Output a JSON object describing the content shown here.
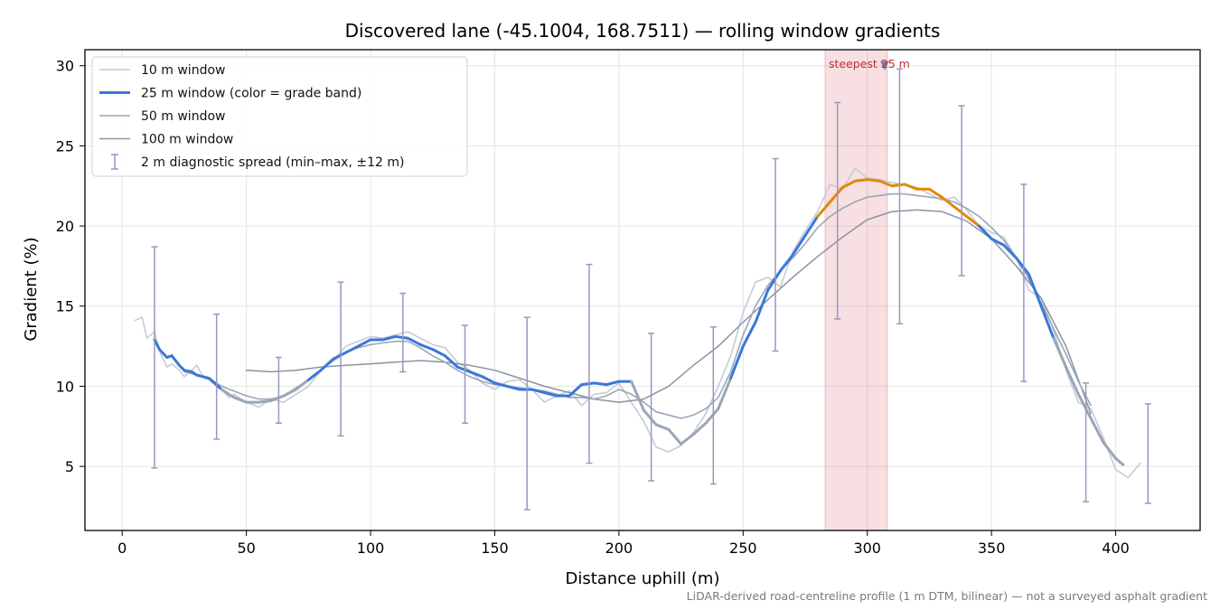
{
  "chart_data": {
    "type": "line",
    "title": "Discovered lane (-45.1004, 168.7511) — rolling window gradients",
    "xlabel": "Distance uphill (m)",
    "ylabel": "Gradient (%)",
    "xlim": [
      -15,
      434
    ],
    "ylim": [
      1,
      31
    ],
    "x_ticks": [
      "0",
      "50",
      "100",
      "150",
      "200",
      "250",
      "300",
      "350",
      "400"
    ],
    "y_ticks": [
      "5",
      "10",
      "15",
      "20",
      "25",
      "30"
    ],
    "grid": true,
    "legend_position": "top-left",
    "footnote": "LiDAR-derived road-centreline profile (1 m DTM, bilinear) — not a surveyed asphalt gradient",
    "series": [
      {
        "name": "10 m window",
        "color": "#c5cbd6",
        "x": [
          5,
          8,
          10,
          13,
          15,
          18,
          20,
          23,
          25,
          28,
          30,
          33,
          35,
          38,
          40,
          43,
          45,
          48,
          50,
          55,
          60,
          65,
          70,
          75,
          80,
          85,
          90,
          95,
          100,
          105,
          110,
          115,
          120,
          125,
          130,
          135,
          140,
          145,
          150,
          155,
          160,
          165,
          170,
          175,
          180,
          185,
          190,
          195,
          200,
          205,
          210,
          215,
          220,
          225,
          230,
          235,
          240,
          245,
          250,
          255,
          260,
          265,
          270,
          275,
          280,
          285,
          290,
          295,
          300,
          305,
          310,
          315,
          320,
          325,
          330,
          335,
          340,
          345,
          350,
          355,
          360,
          365,
          370,
          375,
          380,
          385,
          390,
          395,
          400,
          405,
          410
        ],
        "values": [
          14.1,
          14.3,
          13.0,
          13.4,
          12.2,
          11.2,
          11.4,
          11.0,
          10.6,
          11.0,
          11.3,
          10.5,
          10.4,
          10.0,
          9.8,
          9.3,
          9.5,
          9.2,
          9.0,
          8.7,
          9.2,
          9.0,
          9.5,
          10.0,
          11.0,
          11.6,
          12.5,
          12.8,
          13.1,
          13.0,
          13.2,
          13.4,
          13.0,
          12.6,
          12.4,
          11.5,
          11.0,
          10.2,
          9.8,
          10.3,
          10.4,
          9.8,
          9.0,
          9.4,
          9.7,
          8.8,
          9.5,
          9.6,
          10.2,
          9.0,
          7.8,
          6.2,
          5.9,
          6.3,
          7.1,
          8.3,
          10.0,
          11.9,
          14.6,
          16.5,
          16.8,
          16.2,
          18.4,
          19.7,
          20.9,
          22.6,
          22.3,
          23.6,
          23.0,
          22.9,
          22.7,
          22.6,
          22.4,
          22.0,
          21.6,
          21.8,
          21.0,
          20.0,
          19.6,
          19.3,
          18.0,
          16.0,
          15.5,
          13.5,
          11.0,
          9.0,
          8.6,
          6.8,
          4.8,
          4.3,
          5.2
        ]
      },
      {
        "name": "25 m window (color = grade band)",
        "color": "#3a78d8",
        "band_color": "#e08a0a",
        "band_threshold": 20,
        "x": [
          13,
          15,
          18,
          20,
          23,
          25,
          28,
          30,
          35,
          40,
          45,
          50,
          55,
          60,
          65,
          70,
          75,
          80,
          85,
          90,
          95,
          100,
          105,
          110,
          115,
          120,
          125,
          130,
          135,
          140,
          145,
          150,
          155,
          160,
          165,
          170,
          175,
          180,
          185,
          190,
          195,
          200,
          205,
          210,
          215,
          220,
          225,
          230,
          235,
          240,
          245,
          250,
          255,
          260,
          265,
          270,
          275,
          280,
          285,
          290,
          295,
          300,
          305,
          310,
          315,
          320,
          325,
          330,
          335,
          340,
          345,
          350,
          355,
          360,
          365,
          370,
          375,
          380,
          385,
          390,
          395,
          400,
          403
        ],
        "values": [
          12.9,
          12.3,
          11.8,
          11.9,
          11.3,
          11.0,
          10.9,
          10.7,
          10.5,
          9.8,
          9.3,
          9.0,
          9.0,
          9.1,
          9.4,
          9.8,
          10.4,
          11.0,
          11.7,
          12.1,
          12.5,
          12.9,
          12.9,
          13.1,
          13.0,
          12.6,
          12.3,
          11.9,
          11.2,
          10.9,
          10.6,
          10.2,
          10.0,
          9.8,
          9.8,
          9.6,
          9.4,
          9.4,
          10.1,
          10.2,
          10.1,
          10.3,
          10.3,
          8.5,
          7.6,
          7.3,
          6.4,
          7.0,
          7.7,
          8.6,
          10.5,
          12.5,
          14.0,
          16.0,
          17.2,
          18.2,
          19.4,
          20.6,
          21.5,
          22.4,
          22.8,
          22.9,
          22.8,
          22.5,
          22.6,
          22.3,
          22.3,
          21.8,
          21.2,
          20.6,
          20.0,
          19.2,
          18.8,
          18.0,
          17.0,
          15.0,
          13.0,
          11.2,
          9.5,
          8.0,
          6.5,
          5.5,
          5.1
        ]
      },
      {
        "name": "50 m window",
        "color": "#9aa6b8",
        "x": [
          25,
          30,
          35,
          40,
          45,
          50,
          55,
          60,
          65,
          70,
          75,
          80,
          85,
          90,
          95,
          100,
          105,
          110,
          115,
          120,
          125,
          130,
          135,
          140,
          145,
          150,
          155,
          160,
          165,
          170,
          175,
          180,
          185,
          190,
          195,
          200,
          205,
          210,
          215,
          220,
          225,
          230,
          235,
          240,
          245,
          250,
          255,
          260,
          265,
          270,
          275,
          280,
          285,
          290,
          295,
          300,
          305,
          310,
          315,
          320,
          325,
          330,
          335,
          340,
          345,
          350,
          355,
          360,
          365,
          370,
          375,
          380,
          385,
          390
        ],
        "values": [
          10.9,
          10.7,
          10.5,
          10.0,
          9.7,
          9.4,
          9.2,
          9.2,
          9.4,
          9.9,
          10.4,
          11.0,
          11.6,
          12.1,
          12.4,
          12.6,
          12.7,
          12.8,
          12.8,
          12.4,
          11.9,
          11.5,
          11.0,
          10.6,
          10.3,
          10.1,
          10.0,
          9.9,
          9.8,
          9.7,
          9.5,
          9.3,
          9.3,
          9.2,
          9.4,
          9.8,
          9.5,
          9.0,
          8.4,
          8.2,
          8.0,
          8.2,
          8.6,
          9.3,
          10.9,
          13.2,
          15.0,
          16.3,
          17.2,
          18.0,
          18.9,
          19.9,
          20.6,
          21.1,
          21.5,
          21.8,
          21.9,
          22.0,
          22.0,
          21.9,
          21.8,
          21.7,
          21.5,
          21.1,
          20.6,
          19.9,
          19.1,
          18.0,
          16.7,
          15.2,
          13.6,
          12.0,
          10.3,
          8.8
        ]
      },
      {
        "name": "100 m window",
        "color": "#8a93a3",
        "x": [
          50,
          60,
          70,
          80,
          90,
          100,
          110,
          120,
          130,
          140,
          150,
          160,
          170,
          180,
          190,
          200,
          210,
          220,
          230,
          240,
          250,
          260,
          270,
          280,
          290,
          300,
          310,
          320,
          330,
          340,
          350,
          360,
          370,
          380,
          390
        ],
        "values": [
          11.0,
          10.9,
          11.0,
          11.2,
          11.3,
          11.4,
          11.5,
          11.6,
          11.5,
          11.3,
          11.0,
          10.5,
          10.0,
          9.6,
          9.2,
          9.0,
          9.2,
          10.0,
          11.3,
          12.5,
          14.0,
          15.4,
          16.8,
          18.1,
          19.3,
          20.4,
          20.9,
          21.0,
          20.9,
          20.3,
          19.2,
          17.5,
          15.5,
          12.5,
          8.3
        ]
      },
      {
        "name": "2 m diagnostic spread (min–max, ±12 m)",
        "color": "#9a97bf",
        "x": [
          13,
          38,
          63,
          88,
          113,
          138,
          163,
          188,
          213,
          238,
          263,
          288,
          313,
          338,
          363,
          388,
          413
        ],
        "min": [
          4.9,
          6.7,
          7.7,
          6.9,
          10.9,
          7.7,
          2.3,
          5.2,
          4.1,
          3.9,
          12.2,
          14.2,
          13.9,
          16.9,
          10.3,
          2.8,
          2.7
        ],
        "max": [
          18.7,
          14.5,
          11.8,
          16.5,
          15.8,
          13.8,
          14.3,
          17.6,
          13.3,
          13.7,
          24.2,
          27.7,
          29.8,
          27.5,
          22.6,
          10.2,
          8.9
        ]
      }
    ],
    "highlight": {
      "label": "steepest 25 m",
      "x_start": 283,
      "x_end": 308,
      "marker_x": 307,
      "marker_y": 30.0
    }
  }
}
